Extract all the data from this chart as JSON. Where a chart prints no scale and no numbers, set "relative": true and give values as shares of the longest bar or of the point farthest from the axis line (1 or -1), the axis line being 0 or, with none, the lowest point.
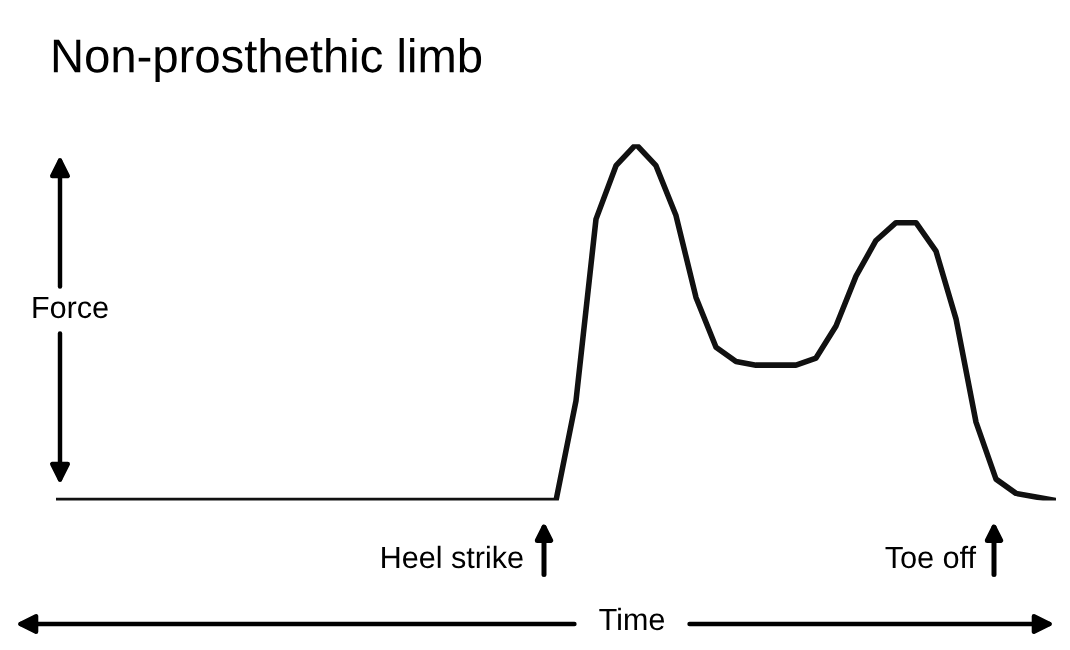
{
  "chart_data": {
    "type": "line",
    "title": "Non-prosthethic limb",
    "ylabel": "Force",
    "xlabel": "Time",
    "relative": true,
    "color": "#111111",
    "categories": [
      null,
      null,
      null,
      null,
      null,
      null,
      null,
      null,
      null,
      null,
      null,
      null,
      null,
      null,
      null,
      null,
      null,
      null,
      null,
      null,
      null,
      null,
      null,
      null,
      null,
      null,
      null,
      null,
      null,
      null,
      null,
      null,
      null,
      null,
      null,
      null,
      null,
      null,
      null,
      null,
      null,
      null,
      null,
      null,
      null,
      null,
      null,
      null,
      null,
      null,
      null
    ],
    "values": [
      0,
      0,
      0,
      0,
      0,
      0,
      0,
      0,
      0,
      0,
      0,
      0,
      0,
      0,
      0,
      0,
      0,
      0,
      0,
      0,
      0,
      0,
      0,
      0,
      0,
      0,
      0.28,
      0.79,
      0.94,
      1,
      0.94,
      0.8,
      0.57,
      0.43,
      0.39,
      0.38,
      0.38,
      0.38,
      0.4,
      0.49,
      0.63,
      0.73,
      0.78,
      0.78,
      0.7,
      0.51,
      0.22,
      0.06,
      0.02,
      0.01,
      0
    ],
    "annotations": [
      "Heel strike",
      "Toe off"
    ],
    "legend": false
  }
}
